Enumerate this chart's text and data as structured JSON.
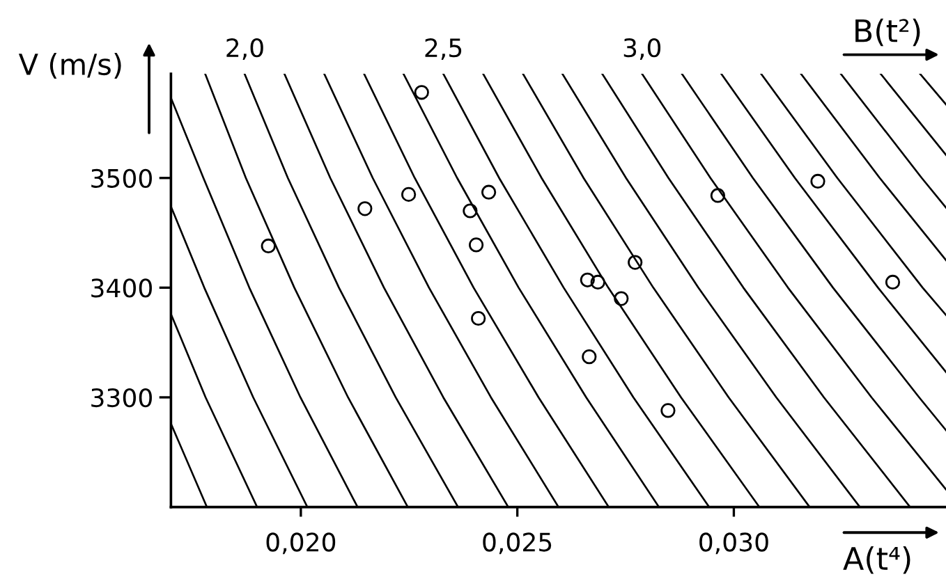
{
  "chart_data": {
    "type": "scatter",
    "xlabel": "A(t⁴)",
    "ylabel": "V (m/s)",
    "x2label": "B(t²)",
    "xlim": [
      0.017,
      0.0349
    ],
    "xticks": [
      {
        "value": 0.02,
        "label": "0,020"
      },
      {
        "value": 0.025,
        "label": "0,025"
      },
      {
        "value": 0.03,
        "label": "0,030"
      }
    ],
    "x2lim": [
      1.814,
      3.765
    ],
    "x2ticks": [
      {
        "value": 2.0,
        "label": "2,0"
      },
      {
        "value": 2.5,
        "label": "2,5"
      },
      {
        "value": 3.0,
        "label": "3,0"
      }
    ],
    "ylim": [
      3200,
      3595
    ],
    "yticks": [
      3300,
      3400,
      3500
    ],
    "series": [
      {
        "color": "#000000",
        "marker": "circle",
        "x": [
          0.01925,
          0.02148,
          0.02249,
          0.02279,
          0.02391,
          0.02405,
          0.02434,
          0.0241,
          0.02662,
          0.02686,
          0.0274,
          0.02772,
          0.02666,
          0.02848,
          0.02963,
          0.03194,
          0.03367
        ],
        "values": [
          3438,
          3472,
          3485,
          3578,
          3470,
          3439,
          3487,
          3372,
          3407,
          3405,
          3390,
          3423,
          3337,
          3288,
          3484,
          3497,
          3405
        ]
      },
      {
        "type": "line",
        "marker": "none",
        "color": "#000000",
        "x": [
          0.017,
          0.01783
        ],
        "values": [
          3276,
          3200
        ]
      },
      {
        "type": "line",
        "marker": "none",
        "color": "#000000",
        "x": [
          0.017,
          0.0178,
          0.01899
        ],
        "values": [
          3376,
          3300,
          3200
        ]
      },
      {
        "type": "line",
        "marker": "none",
        "color": "#000000",
        "x": [
          0.017,
          0.01777,
          0.0189,
          0.02015
        ],
        "values": [
          3474,
          3400,
          3300,
          3200
        ]
      },
      {
        "type": "line",
        "marker": "none",
        "color": "#000000",
        "x": [
          0.017,
          0.01775,
          0.01881,
          0.01999,
          0.02131
        ],
        "values": [
          3573,
          3500,
          3400,
          3300,
          3200
        ]
      },
      {
        "type": "line",
        "marker": "none",
        "color": "#000000",
        "x": [
          0.01779,
          0.01873,
          0.01985,
          0.02109,
          0.02247
        ],
        "values": [
          3595,
          3500,
          3400,
          3300,
          3200
        ]
      },
      {
        "type": "line",
        "marker": "none",
        "color": "#000000",
        "x": [
          0.0187,
          0.0197,
          0.02088,
          0.02219,
          0.02363
        ],
        "values": [
          3595,
          3500,
          3400,
          3300,
          3200
        ]
      },
      {
        "type": "line",
        "marker": "none",
        "color": "#000000",
        "x": [
          0.01962,
          0.02068,
          0.02192,
          0.02329,
          0.02479
        ],
        "values": [
          3595,
          3500,
          3400,
          3300,
          3200
        ]
      },
      {
        "type": "line",
        "marker": "none",
        "color": "#000000",
        "x": [
          0.02054,
          0.02166,
          0.02296,
          0.02439,
          0.02595
        ],
        "values": [
          3595,
          3500,
          3400,
          3300,
          3200
        ]
      },
      {
        "type": "line",
        "marker": "none",
        "color": "#000000",
        "x": [
          0.02146,
          0.02263,
          0.02399,
          0.02549,
          0.02711
        ],
        "values": [
          3595,
          3500,
          3400,
          3300,
          3200
        ]
      },
      {
        "type": "line",
        "marker": "none",
        "color": "#000000",
        "x": [
          0.02237,
          0.02361,
          0.02503,
          0.02659,
          0.02827
        ],
        "values": [
          3595,
          3500,
          3400,
          3300,
          3200
        ]
      },
      {
        "type": "line",
        "marker": "none",
        "color": "#000000",
        "x": [
          0.02329,
          0.02458,
          0.02607,
          0.02768,
          0.02943
        ],
        "values": [
          3595,
          3500,
          3400,
          3300,
          3200
        ]
      },
      {
        "type": "line",
        "marker": "none",
        "color": "#000000",
        "x": [
          0.02421,
          0.02556,
          0.0271,
          0.02878,
          0.03059
        ],
        "values": [
          3595,
          3500,
          3400,
          3300,
          3200
        ]
      },
      {
        "type": "line",
        "marker": "none",
        "color": "#000000",
        "x": [
          0.02513,
          0.02653,
          0.02814,
          0.02988,
          0.03175
        ],
        "values": [
          3595,
          3500,
          3400,
          3300,
          3200
        ]
      },
      {
        "type": "line",
        "marker": "none",
        "color": "#000000",
        "x": [
          0.02604,
          0.02751,
          0.02918,
          0.03098,
          0.03291
        ],
        "values": [
          3595,
          3500,
          3400,
          3300,
          3200
        ]
      },
      {
        "type": "line",
        "marker": "none",
        "color": "#000000",
        "x": [
          0.02696,
          0.02849,
          0.03022,
          0.03208,
          0.03407
        ],
        "values": [
          3595,
          3500,
          3400,
          3300,
          3200
        ]
      },
      {
        "type": "line",
        "marker": "none",
        "color": "#000000",
        "x": [
          0.02788,
          0.02946,
          0.03125,
          0.03318,
          0.0349
        ],
        "values": [
          3595,
          3500,
          3400,
          3300,
          3216
        ]
      },
      {
        "type": "line",
        "marker": "none",
        "color": "#000000",
        "x": [
          0.0288,
          0.03044,
          0.03229,
          0.03428,
          0.0349
        ],
        "values": [
          3595,
          3500,
          3400,
          3300,
          3270
        ]
      },
      {
        "type": "line",
        "marker": "none",
        "color": "#000000",
        "x": [
          0.02971,
          0.03141,
          0.03333,
          0.0349
        ],
        "values": [
          3595,
          3500,
          3400,
          3323
        ]
      },
      {
        "type": "line",
        "marker": "none",
        "color": "#000000",
        "x": [
          0.03063,
          0.03239,
          0.03436,
          0.0349
        ],
        "values": [
          3595,
          3500,
          3400,
          3375
        ]
      },
      {
        "type": "line",
        "marker": "none",
        "color": "#000000",
        "x": [
          0.03155,
          0.03337,
          0.0349
        ],
        "values": [
          3595,
          3500,
          3425
        ]
      },
      {
        "type": "line",
        "marker": "none",
        "color": "#000000",
        "x": [
          0.03247,
          0.03434,
          0.0349
        ],
        "values": [
          3595,
          3500,
          3473
        ]
      },
      {
        "type": "line",
        "marker": "none",
        "color": "#000000",
        "x": [
          0.03339,
          0.0349
        ],
        "values": [
          3595,
          3521
        ]
      },
      {
        "type": "line",
        "marker": "none",
        "color": "#000000",
        "x": [
          0.0343,
          0.0349
        ],
        "values": [
          3595,
          3567
        ]
      }
    ]
  }
}
